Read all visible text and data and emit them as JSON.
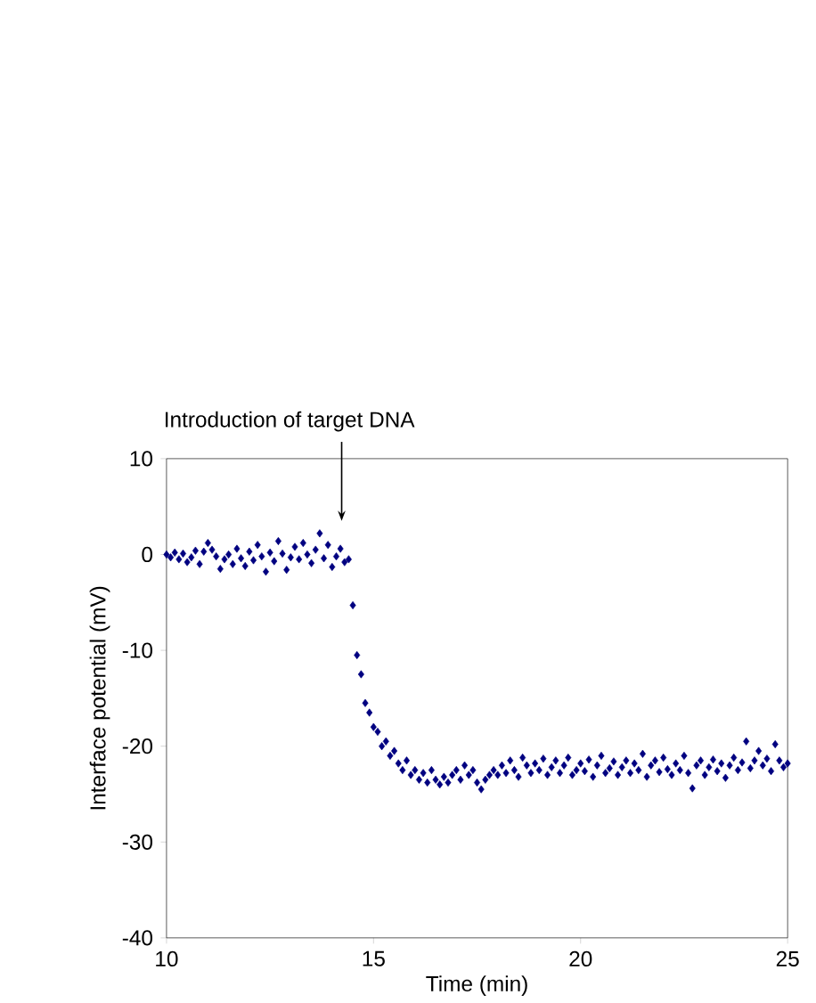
{
  "chart_data": {
    "type": "scatter",
    "xlabel": "Time (min)",
    "ylabel": "Interface potential (mV)",
    "xlim": [
      10,
      25
    ],
    "ylim": [
      -40,
      10
    ],
    "xticks": [
      10,
      15,
      20,
      25
    ],
    "yticks": [
      -40,
      -30,
      -20,
      -10,
      0,
      10
    ],
    "marker": "diamond",
    "grid": false,
    "annotations": [
      "Introduction of target DNA"
    ],
    "series": [
      {
        "color": "#000080",
        "x": [
          10.0,
          10.1,
          10.2,
          10.3,
          10.4,
          10.5,
          10.6,
          10.7,
          10.8,
          10.9,
          11.0,
          11.1,
          11.2,
          11.3,
          11.4,
          11.5,
          11.6,
          11.7,
          11.8,
          11.9,
          12.0,
          12.1,
          12.2,
          12.3,
          12.4,
          12.5,
          12.6,
          12.7,
          12.8,
          12.9,
          13.0,
          13.1,
          13.2,
          13.3,
          13.4,
          13.5,
          13.6,
          13.7,
          13.8,
          13.9,
          14.0,
          14.1,
          14.2,
          14.3,
          14.4,
          14.5,
          14.6,
          14.7,
          14.8,
          14.9,
          15.0,
          15.1,
          15.2,
          15.3,
          15.4,
          15.5,
          15.6,
          15.7,
          15.8,
          15.9,
          16.0,
          16.1,
          16.2,
          16.3,
          16.4,
          16.5,
          16.6,
          16.7,
          16.8,
          16.9,
          17.0,
          17.1,
          17.2,
          17.3,
          17.4,
          17.5,
          17.6,
          17.7,
          17.8,
          17.9,
          18.0,
          18.1,
          18.2,
          18.3,
          18.4,
          18.5,
          18.6,
          18.7,
          18.8,
          18.9,
          19.0,
          19.1,
          19.2,
          19.3,
          19.4,
          19.5,
          19.6,
          19.7,
          19.8,
          19.9,
          20.0,
          20.1,
          20.2,
          20.3,
          20.4,
          20.5,
          20.6,
          20.7,
          20.8,
          20.9,
          21.0,
          21.1,
          21.2,
          21.3,
          21.4,
          21.5,
          21.6,
          21.7,
          21.8,
          21.9,
          22.0,
          22.1,
          22.2,
          22.3,
          22.4,
          22.5,
          22.6,
          22.7,
          22.8,
          22.9,
          23.0,
          23.1,
          23.2,
          23.3,
          23.4,
          23.5,
          23.6,
          23.7,
          23.8,
          23.9,
          24.0,
          24.1,
          24.2,
          24.3,
          24.4,
          24.5,
          24.6,
          24.7,
          24.8,
          24.9,
          25.0
        ],
        "values": [
          0.0,
          -0.3,
          0.2,
          -0.5,
          0.1,
          -0.8,
          -0.3,
          0.4,
          -1.0,
          0.3,
          1.2,
          0.5,
          -0.2,
          -1.5,
          -0.5,
          0.0,
          -1.0,
          0.6,
          -0.4,
          -1.2,
          0.3,
          -0.6,
          1.0,
          -0.2,
          -1.8,
          0.2,
          -0.7,
          1.4,
          0.1,
          -1.6,
          -0.3,
          0.8,
          -0.5,
          1.2,
          0.0,
          -0.9,
          0.5,
          2.2,
          -0.4,
          1.0,
          -1.3,
          -0.2,
          0.6,
          -0.8,
          -0.5,
          -5.3,
          -10.5,
          -12.5,
          -15.5,
          -16.5,
          -18,
          -18.5,
          -20,
          -19.5,
          -21,
          -20.5,
          -21.8,
          -22.5,
          -21.5,
          -23,
          -22.5,
          -23.5,
          -22.8,
          -23.8,
          -22.5,
          -23.5,
          -24,
          -23.2,
          -23.8,
          -23,
          -22.5,
          -23.5,
          -22,
          -23,
          -22.5,
          -23.8,
          -24.5,
          -23.5,
          -23,
          -22.5,
          -23,
          -22,
          -22.8,
          -21.5,
          -22.5,
          -23.2,
          -21.2,
          -22,
          -22.8,
          -21.8,
          -22.5,
          -21.3,
          -23,
          -22.2,
          -21.5,
          -22.8,
          -22,
          -21.2,
          -23,
          -22.5,
          -21.8,
          -22.6,
          -21.4,
          -23.2,
          -22,
          -21,
          -22.8,
          -22.3,
          -21.6,
          -23,
          -22.2,
          -21.5,
          -22.8,
          -21.8,
          -22.5,
          -20.8,
          -23.2,
          -22,
          -21.5,
          -22.7,
          -21.2,
          -22.4,
          -23,
          -21.8,
          -22.5,
          -21,
          -22.8,
          -24.4,
          -22,
          -21.5,
          -23,
          -22.2,
          -21.4,
          -22.6,
          -21.8,
          -23.3,
          -22,
          -21.2,
          -22.5,
          -21.7,
          -19.5,
          -22.3,
          -21.5,
          -20.5,
          -22,
          -21.3,
          -22.6,
          -19.8,
          -21.5,
          -22.2,
          -21.8
        ]
      }
    ]
  }
}
